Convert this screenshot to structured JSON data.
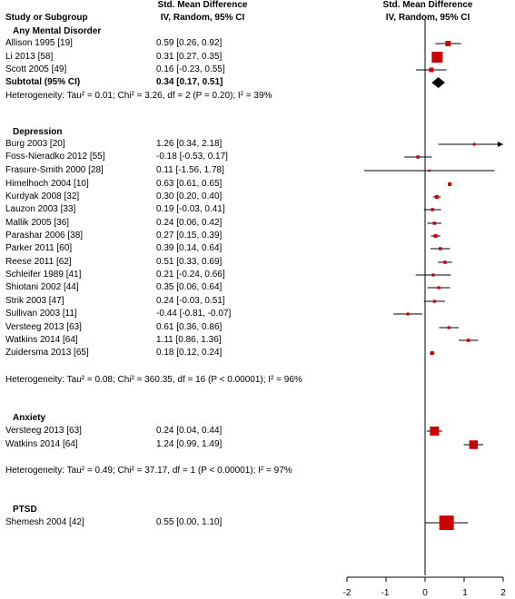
{
  "header": {
    "study_col": "Study or Subgroup",
    "smd_title_left": "Std. Mean Difference",
    "smd_sub_left": "IV, Random, 95% CI",
    "smd_title_right": "Std. Mean Difference",
    "smd_sub_right": "IV, Random, 95% CI"
  },
  "chart_data": {
    "type": "forest",
    "x_axis": {
      "ticks": [
        "-2",
        "-1",
        "0",
        "1",
        "2"
      ],
      "tick_values": [
        -2,
        -1,
        0,
        1,
        2
      ],
      "xlim": [
        -2,
        2
      ]
    },
    "groups": [
      {
        "name": "Any Mental Disorder",
        "studies": [
          {
            "label": "Allison 1995 [19]",
            "ci_text": "0.59 [0.26, 0.92]",
            "est": 0.59,
            "lo": 0.26,
            "hi": 0.92,
            "weight": 0.4
          },
          {
            "label": "Li 2013 [58]",
            "ci_text": "0.31 [0.27, 0.35]",
            "est": 0.31,
            "lo": 0.27,
            "hi": 0.35,
            "weight": 1.0
          },
          {
            "label": "Scott 2005 [49]",
            "ci_text": "0.16 [-0.23, 0.55]",
            "est": 0.16,
            "lo": -0.23,
            "hi": 0.55,
            "weight": 0.3
          }
        ],
        "subtotal": {
          "label": "Subtotal (95% CI)",
          "ci_text": "0.34 [0.17, 0.51]",
          "est": 0.34,
          "lo": 0.17,
          "hi": 0.51
        },
        "heterogeneity": "Heterogeneity: Tau² = 0.01; Chi² = 3.26, df = 2 (P = 0.20); I² = 39%"
      },
      {
        "name": "Depression",
        "studies": [
          {
            "label": "Burg 2003 [20]",
            "ci_text": "1.26 [0.34, 2.18]",
            "est": 1.26,
            "lo": 0.34,
            "hi": 2.18,
            "weight": 0.1
          },
          {
            "label": "Foss-Nieradko 2012 [55]",
            "ci_text": "-0.18 [-0.53, 0.17]",
            "est": -0.18,
            "lo": -0.53,
            "hi": 0.17,
            "weight": 0.15
          },
          {
            "label": "Frasure-Smith 2000 [28]",
            "ci_text": "0.11 [-1.56, 1.78]",
            "est": 0.11,
            "lo": -1.56,
            "hi": 1.78,
            "weight": 0.05
          },
          {
            "label": "Himelhoch 2004 [10]",
            "ci_text": "0.63 [0.61, 0.65]",
            "est": 0.63,
            "lo": 0.61,
            "hi": 0.65,
            "weight": 0.2
          },
          {
            "label": "Kurdyak 2008 [32]",
            "ci_text": "0.30 [0.20, 0.40]",
            "est": 0.3,
            "lo": 0.2,
            "hi": 0.4,
            "weight": 0.2
          },
          {
            "label": "Lauzon 2003 [33]",
            "ci_text": "0.19 [-0.03, 0.41]",
            "est": 0.19,
            "lo": -0.03,
            "hi": 0.41,
            "weight": 0.15
          },
          {
            "label": "Mallik 2005 [36]",
            "ci_text": "0.24 [0.06, 0.42]",
            "est": 0.24,
            "lo": 0.06,
            "hi": 0.42,
            "weight": 0.15
          },
          {
            "label": "Parashar 2006 [38]",
            "ci_text": "0.27 [0.15, 0.39]",
            "est": 0.27,
            "lo": 0.15,
            "hi": 0.39,
            "weight": 0.2
          },
          {
            "label": "Parker 2011 [60]",
            "ci_text": "0.39 [0.14, 0.64]",
            "est": 0.39,
            "lo": 0.14,
            "hi": 0.64,
            "weight": 0.15
          },
          {
            "label": "Reese 2011 [62]",
            "ci_text": "0.51 [0.33, 0.69]",
            "est": 0.51,
            "lo": 0.33,
            "hi": 0.69,
            "weight": 0.15
          },
          {
            "label": "Schleifer 1989 [41]",
            "ci_text": "0.21 [-0.24, 0.66]",
            "est": 0.21,
            "lo": -0.24,
            "hi": 0.66,
            "weight": 0.12
          },
          {
            "label": "Shiotani 2002 [44]",
            "ci_text": "0.35 [0.06, 0.64]",
            "est": 0.35,
            "lo": 0.06,
            "hi": 0.64,
            "weight": 0.12
          },
          {
            "label": "Strik 2003 [47]",
            "ci_text": "0.24 [-0.03, 0.51]",
            "est": 0.24,
            "lo": -0.03,
            "hi": 0.51,
            "weight": 0.12
          },
          {
            "label": "Sullivan 2003 [11]",
            "ci_text": "-0.44 [-0.81, -0.07]",
            "est": -0.44,
            "lo": -0.81,
            "hi": -0.07,
            "weight": 0.12
          },
          {
            "label": "Versteeg 2013 [63]",
            "ci_text": "0.61 [0.36, 0.86]",
            "est": 0.61,
            "lo": 0.36,
            "hi": 0.86,
            "weight": 0.12
          },
          {
            "label": "Watkins 2014 [64]",
            "ci_text": "1.11 [0.86, 1.36]",
            "est": 1.11,
            "lo": 0.86,
            "hi": 1.36,
            "weight": 0.15
          },
          {
            "label": "Zuidersma 2013 [65]",
            "ci_text": "0.18 [0.12, 0.24]",
            "est": 0.18,
            "lo": 0.12,
            "hi": 0.24,
            "weight": 0.2
          }
        ],
        "heterogeneity": "Heterogeneity: Tau² = 0.08; Chi² = 360.35, df = 16 (P < 0.00001); I² = 96%"
      },
      {
        "name": "Anxiety",
        "studies": [
          {
            "label": "Versteeg 2013 [63]",
            "ci_text": "0.24 [0.04, 0.44]",
            "est": 0.24,
            "lo": 0.04,
            "hi": 0.44,
            "weight": 0.8
          },
          {
            "label": "Watkins 2014 [64]",
            "ci_text": "1.24 [0.99, 1.49]",
            "est": 1.24,
            "lo": 0.99,
            "hi": 1.49,
            "weight": 0.75
          }
        ],
        "heterogeneity": "Heterogeneity: Tau² = 0.49; Chi² = 37.17, df = 1 (P < 0.00001); I² = 97%"
      },
      {
        "name": "PTSD",
        "studies": [
          {
            "label": "Shemesh 2004 [42]",
            "ci_text": "0.55 [0.00, 1.10]",
            "est": 0.55,
            "lo": 0.0,
            "hi": 1.1,
            "weight": 1.4
          }
        ]
      }
    ],
    "colors": {
      "marker": "#cc0000",
      "diamond": "#000000",
      "line": "#000000"
    }
  }
}
